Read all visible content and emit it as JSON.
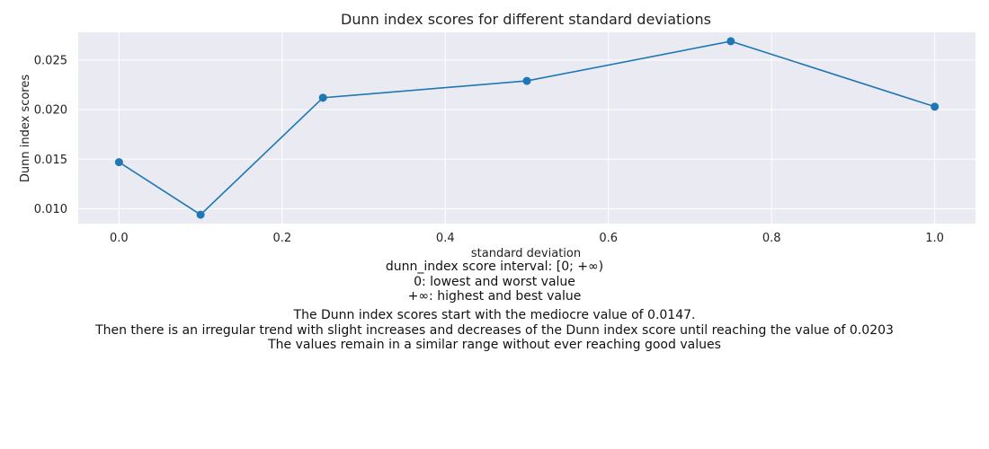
{
  "chart_data": {
    "type": "line",
    "title": "Dunn index scores for different standard deviations",
    "xlabel": "standard deviation",
    "ylabel": "Dunn index scores",
    "x": [
      0.0,
      0.1,
      0.25,
      0.5,
      0.75,
      1.0
    ],
    "series": [
      {
        "values": [
          0.0147,
          0.0094,
          0.0212,
          0.0229,
          0.0269,
          0.0203
        ]
      }
    ],
    "xticks": [
      "0.0",
      "0.2",
      "0.4",
      "0.6",
      "0.8",
      "1.0"
    ],
    "yticks": [
      "0.010",
      "0.015",
      "0.020",
      "0.025"
    ],
    "xlim": [
      -0.05,
      1.05
    ],
    "ylim": [
      0.0085,
      0.0278
    ],
    "grid": true,
    "colors": {
      "line": "#1f77b4",
      "plot_bg": "#eaeaf2",
      "grid": "#ffffff"
    }
  },
  "notes": {
    "interval": [
      "dunn_index score interval: [0; +∞)",
      "0: lowest and worst value",
      "+∞: highest and best value"
    ],
    "trend": [
      "The Dunn index scores start with the mediocre value of 0.0147.",
      "Then there is an irregular trend with slight increases and decreases of the Dunn index score until reaching the value of 0.0203",
      "The values remain in a similar range without ever reaching good values"
    ]
  }
}
